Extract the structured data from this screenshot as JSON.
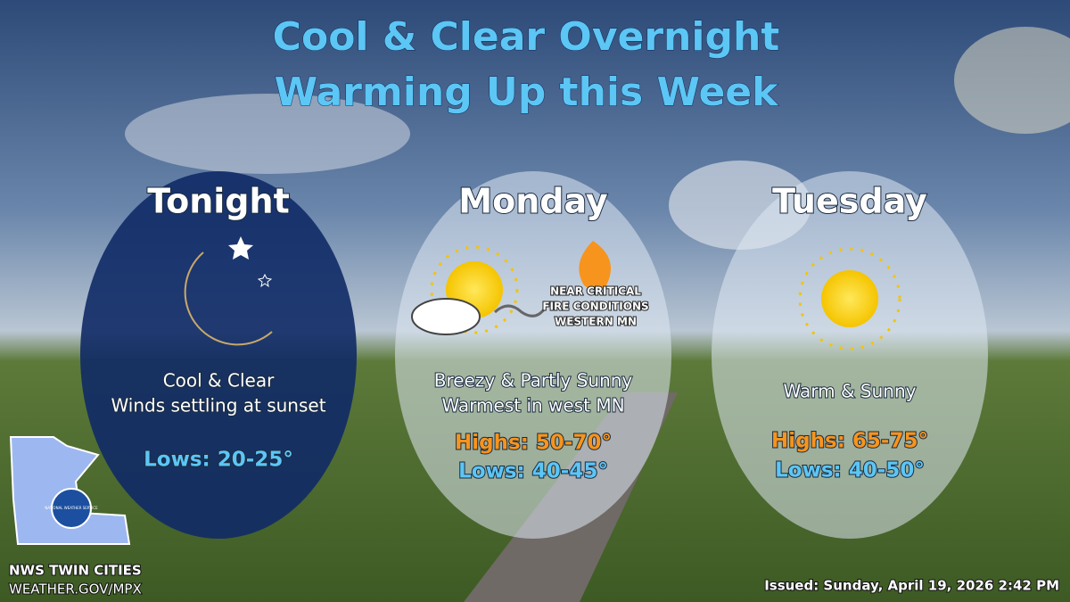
{
  "header": {
    "title_lines": [
      "Cool & Clear Overnight",
      "Warming Up this Week"
    ]
  },
  "panels": [
    {
      "day": "Tonight",
      "lines": [
        "Cool & Clear",
        "Winds settling at sunset"
      ],
      "lows": "Lows:  20-25°"
    },
    {
      "day": "Monday",
      "lines": [
        "Breezy & Partly Sunny",
        "Warmest in west MN"
      ],
      "highs": "Highs:  50-70°",
      "lows": "Lows:  40-45°",
      "note": [
        "NEAR CRITICAL",
        "FIRE CONDITIONS",
        "WESTERN MN"
      ]
    },
    {
      "day": "Tuesday",
      "lines": [
        "Warm & Sunny"
      ],
      "highs": "Highs: 65-75°",
      "lows": "Lows: 40-50°"
    }
  ],
  "footer": {
    "office": "NWS TWIN CITIES",
    "url": "WEATHER.GOV/MPX",
    "logo_text": "NATIONAL WEATHER SERVICE",
    "issued": "Issued: Sunday, April 19, 2026 2:42 PM"
  }
}
